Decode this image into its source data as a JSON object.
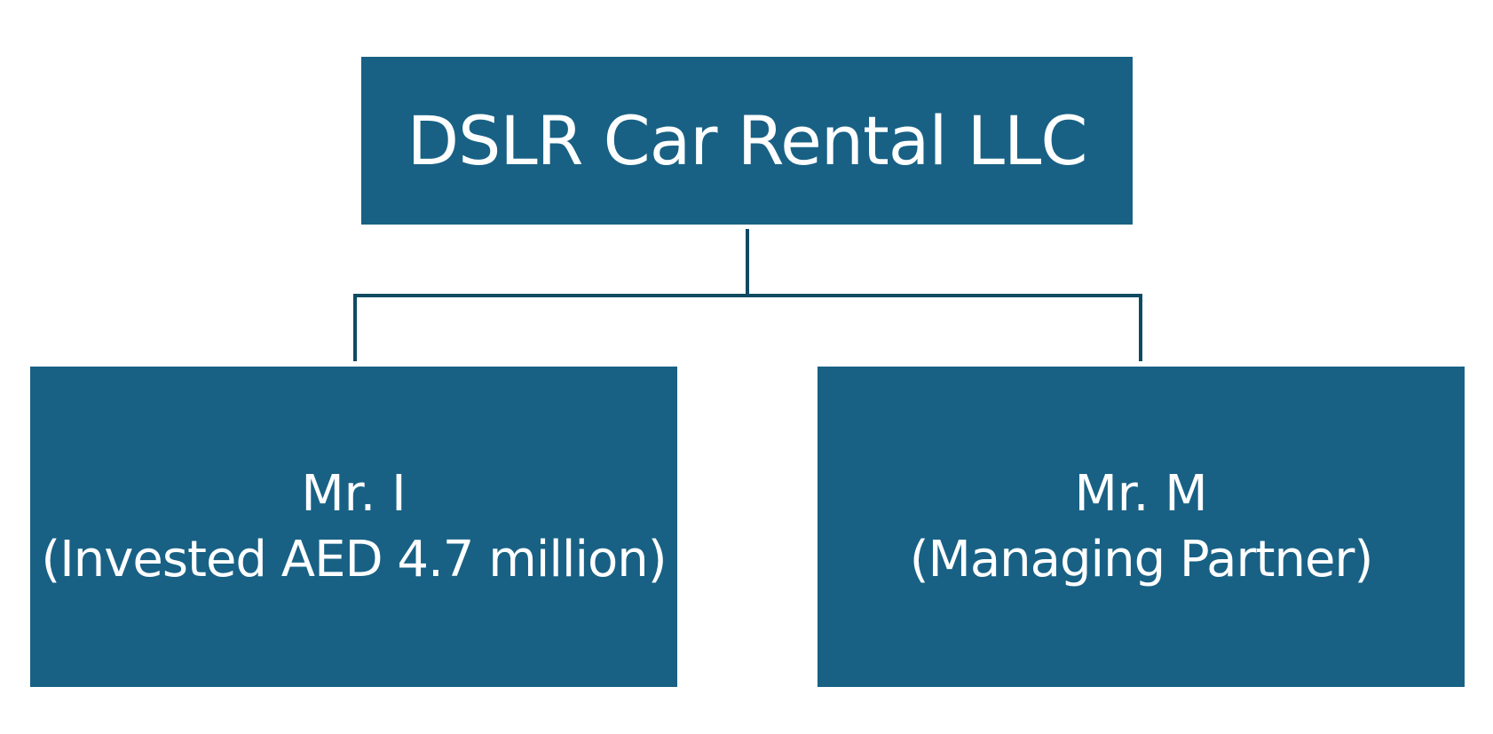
{
  "chart": {
    "root": {
      "label": "DSLR Car Rental LLC"
    },
    "children": [
      {
        "name": "Mr. I",
        "description": "(Invested AED 4.7 million)"
      },
      {
        "name": "Mr. M",
        "description": "(Managing Partner)"
      }
    ]
  },
  "colors": {
    "box_fill": "#186185",
    "box_text": "#ffffff",
    "connector": "#0f4a63",
    "background": "#ffffff"
  }
}
